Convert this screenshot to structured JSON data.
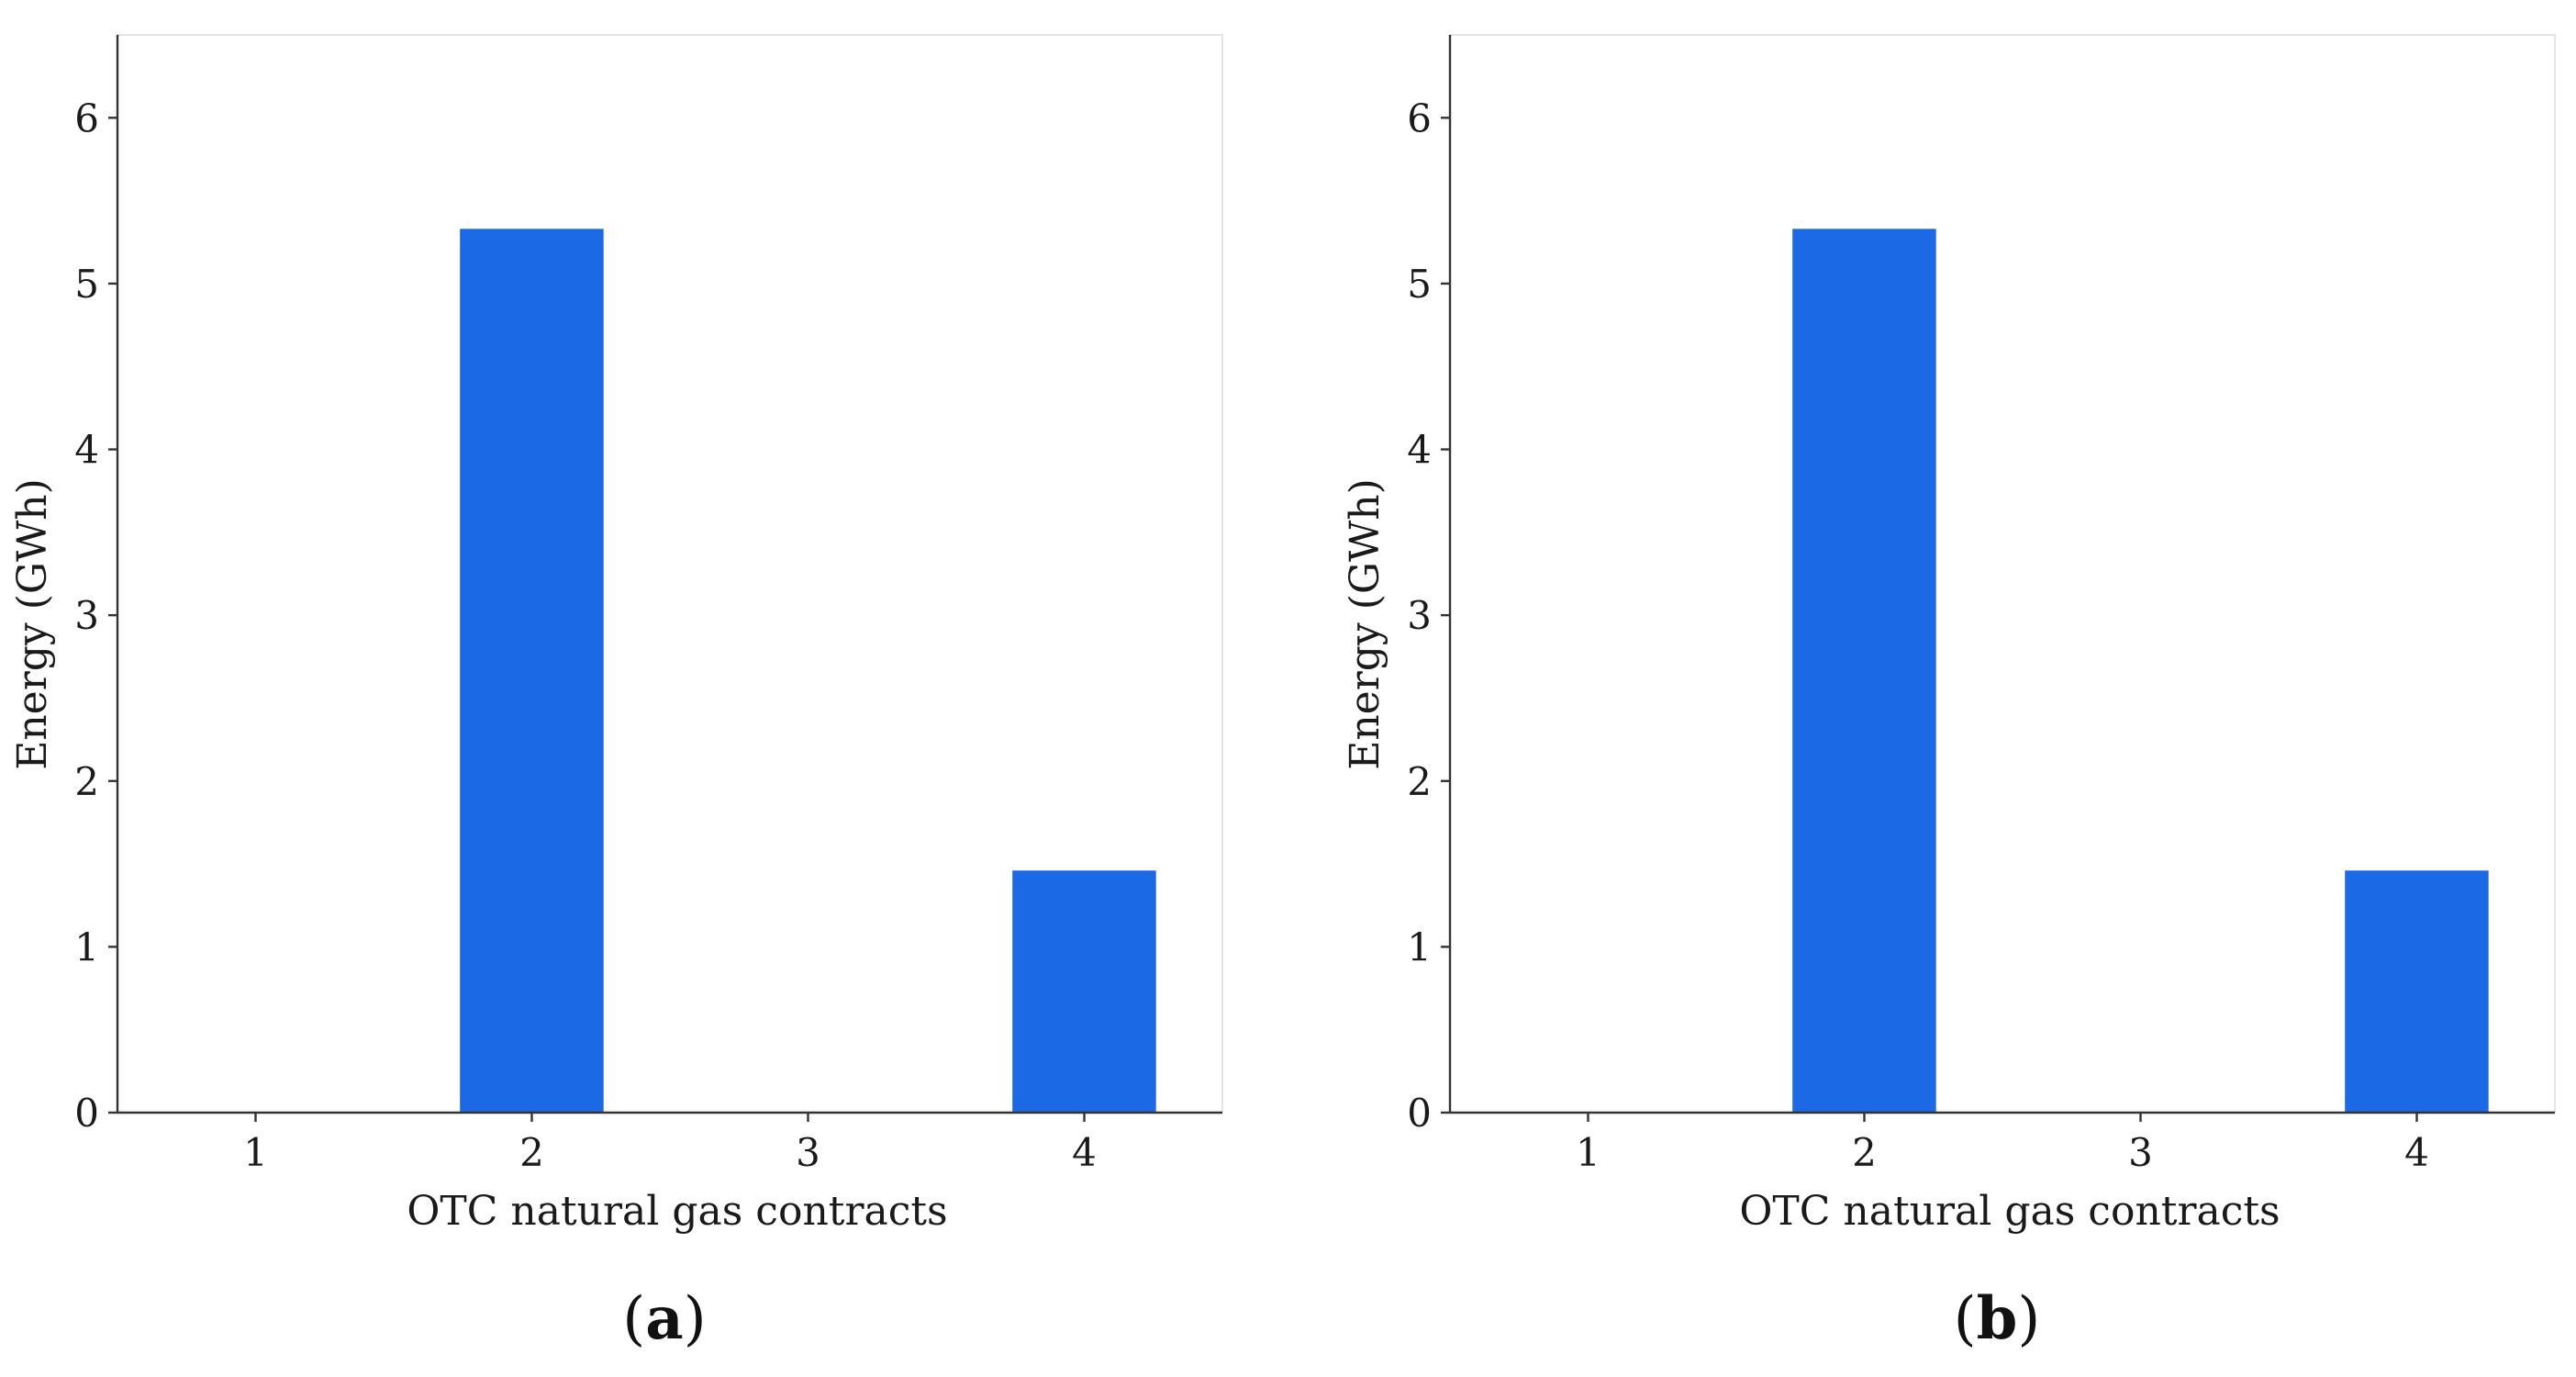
{
  "chart_data": [
    {
      "type": "bar",
      "panel_label_open": "(",
      "panel_label_letter": "a",
      "panel_label_close": ")",
      "categories": [
        "1",
        "2",
        "3",
        "4"
      ],
      "values": [
        0,
        5.33,
        0,
        1.46
      ],
      "xlabel": "OTC natural gas contracts",
      "ylabel": "Energy (GWh)",
      "ylim": [
        0,
        6.5
      ],
      "yticks": [
        "0",
        "1",
        "2",
        "3",
        "4",
        "5",
        "6"
      ],
      "bar_color": "#1c69e6",
      "grid": false
    },
    {
      "type": "bar",
      "panel_label_open": "(",
      "panel_label_letter": "b",
      "panel_label_close": ")",
      "categories": [
        "1",
        "2",
        "3",
        "4"
      ],
      "values": [
        0,
        5.33,
        0,
        1.46
      ],
      "xlabel": "OTC natural gas contracts",
      "ylabel": "Energy (GWh)",
      "ylim": [
        0,
        6.5
      ],
      "yticks": [
        "0",
        "1",
        "2",
        "3",
        "4",
        "5",
        "6"
      ],
      "bar_color": "#1c69e6",
      "grid": false
    }
  ]
}
